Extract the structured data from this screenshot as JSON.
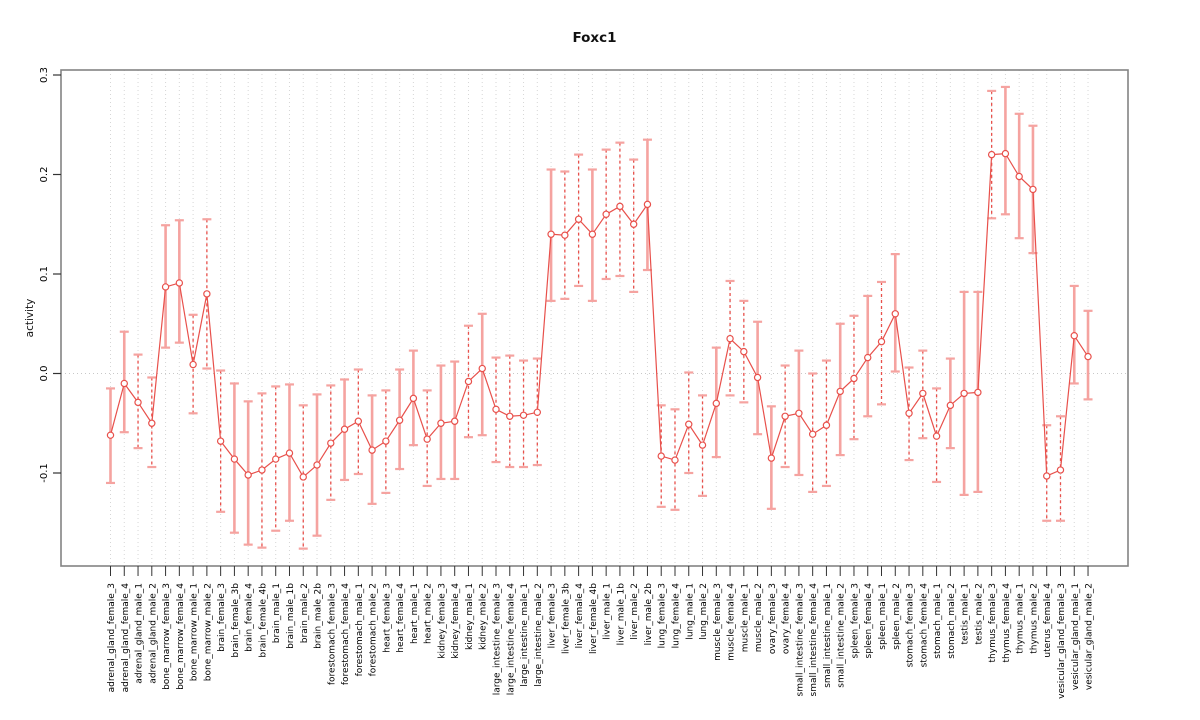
{
  "page": {
    "title": "Foxc1"
  },
  "chart_data": {
    "type": "line",
    "title": "Foxc1",
    "xlabel": "",
    "ylabel": "activity",
    "ylim": [
      -0.194,
      0.305
    ],
    "yticks": [
      0.3,
      0.2,
      0.1,
      0.0,
      -0.1
    ],
    "ytick_labels": [
      "0.3",
      "0.2",
      "0.1",
      "0.0",
      "-0.1"
    ],
    "grid": "vertical dotted gridline at every category; horizontal dotted line at y=0",
    "legend_position": "none",
    "marker": "open-circle",
    "error_bars": true,
    "categories": [
      "adrenal_gland_female_3",
      "adrenal_gland_female_4",
      "adrenal_gland_male_1",
      "adrenal_gland_male_2",
      "bone_marrow_female_3",
      "bone_marrow_female_4",
      "bone_marrow_male_1",
      "bone_marrow_male_2",
      "brain_female_3",
      "brain_female_3b",
      "brain_female_4",
      "brain_female_4b",
      "brain_male_1",
      "brain_male_1b",
      "brain_male_2",
      "brain_male_2b",
      "forestomach_female_3",
      "forestomach_female_4",
      "forestomach_male_1",
      "forestomach_male_2",
      "heart_female_3",
      "heart_female_4",
      "heart_male_1",
      "heart_male_2",
      "kidney_female_3",
      "kidney_female_4",
      "kidney_male_1",
      "kidney_male_2",
      "large_intestine_female_3",
      "large_intestine_female_4",
      "large_intestine_male_1",
      "large_intestine_male_2",
      "liver_female_3",
      "liver_female_3b",
      "liver_female_4",
      "liver_female_4b",
      "liver_male_1",
      "liver_male_1b",
      "liver_male_2",
      "liver_male_2b",
      "lung_female_3",
      "lung_female_4",
      "lung_male_1",
      "lung_male_2",
      "muscle_female_3",
      "muscle_female_4",
      "muscle_male_1",
      "muscle_male_2",
      "ovary_female_3",
      "ovary_female_4",
      "small_intestine_female_3",
      "small_intestine_female_4",
      "small_intestine_male_1",
      "small_intestine_male_2",
      "spleen_female_3",
      "spleen_female_4",
      "spleen_male_1",
      "spleen_male_2",
      "stomach_female_3",
      "stomach_female_4",
      "stomach_male_1",
      "stomach_male_2",
      "testis_male_1",
      "testis_male_2",
      "thymus_female_3",
      "thymus_female_4",
      "thymus_male_1",
      "thymus_male_2",
      "uterus_female_4",
      "vesicular_gland_female_3",
      "vesicular_gland_male_1",
      "vesicular_gland_male_2"
    ],
    "values": [
      -0.062,
      -0.01,
      -0.029,
      -0.05,
      0.087,
      0.091,
      0.009,
      0.08,
      -0.068,
      -0.086,
      -0.102,
      -0.097,
      -0.086,
      -0.08,
      -0.104,
      -0.092,
      -0.07,
      -0.056,
      -0.048,
      -0.077,
      -0.068,
      -0.047,
      -0.025,
      -0.066,
      -0.05,
      -0.048,
      -0.008,
      0.005,
      -0.036,
      -0.043,
      -0.042,
      -0.039,
      0.14,
      0.139,
      0.155,
      0.14,
      0.16,
      0.168,
      0.15,
      0.17,
      -0.083,
      -0.087,
      -0.051,
      -0.072,
      -0.03,
      0.035,
      0.022,
      -0.004,
      -0.085,
      -0.043,
      -0.04,
      -0.061,
      -0.052,
      -0.018,
      -0.005,
      0.016,
      0.032,
      0.06,
      -0.04,
      -0.02,
      -0.063,
      -0.032,
      -0.02,
      -0.019,
      0.22,
      0.221,
      0.198,
      0.185,
      -0.103,
      -0.097,
      0.038,
      0.017
    ],
    "err_lo": [
      -0.11,
      -0.059,
      -0.075,
      -0.094,
      0.026,
      0.031,
      -0.04,
      0.005,
      -0.139,
      -0.16,
      -0.172,
      -0.175,
      -0.158,
      -0.148,
      -0.176,
      -0.163,
      -0.127,
      -0.107,
      -0.101,
      -0.131,
      -0.12,
      -0.096,
      -0.072,
      -0.113,
      -0.106,
      -0.106,
      -0.064,
      -0.062,
      -0.089,
      -0.094,
      -0.094,
      -0.092,
      0.073,
      0.075,
      0.088,
      0.073,
      0.095,
      0.098,
      0.082,
      0.104,
      -0.134,
      -0.137,
      -0.1,
      -0.123,
      -0.084,
      -0.022,
      -0.029,
      -0.061,
      -0.136,
      -0.094,
      -0.102,
      -0.119,
      -0.113,
      -0.082,
      -0.066,
      -0.043,
      -0.031,
      0.002,
      -0.087,
      -0.065,
      -0.109,
      -0.075,
      -0.122,
      -0.119,
      0.156,
      0.16,
      0.136,
      0.121,
      -0.148,
      -0.148,
      -0.01,
      -0.026
    ],
    "err_hi": [
      -0.015,
      0.042,
      0.019,
      -0.004,
      0.149,
      0.154,
      0.059,
      0.155,
      0.003,
      -0.01,
      -0.028,
      -0.02,
      -0.013,
      -0.011,
      -0.032,
      -0.021,
      -0.012,
      -0.006,
      0.004,
      -0.022,
      -0.017,
      0.004,
      0.023,
      -0.017,
      0.008,
      0.012,
      0.048,
      0.06,
      0.016,
      0.018,
      0.013,
      0.015,
      0.205,
      0.203,
      0.22,
      0.205,
      0.225,
      0.232,
      0.215,
      0.235,
      -0.032,
      -0.036,
      0.001,
      -0.022,
      0.026,
      0.093,
      0.073,
      0.052,
      -0.033,
      0.008,
      0.023,
      0.0,
      0.013,
      0.05,
      0.058,
      0.078,
      0.092,
      0.12,
      0.006,
      0.023,
      -0.015,
      0.015,
      0.082,
      0.082,
      0.284,
      0.288,
      0.261,
      0.249,
      -0.052,
      -0.043,
      0.088,
      0.063
    ],
    "bar_style": [
      "s",
      "s",
      "d",
      "d",
      "s",
      "s",
      "d",
      "d",
      "d",
      "s",
      "s",
      "d",
      "d",
      "s",
      "d",
      "s",
      "d",
      "s",
      "d",
      "s",
      "d",
      "s",
      "s",
      "d",
      "s",
      "s",
      "d",
      "s",
      "d",
      "d",
      "d",
      "d",
      "s",
      "d",
      "d",
      "s",
      "d",
      "d",
      "d",
      "s",
      "d",
      "d",
      "d",
      "d",
      "s",
      "d",
      "d",
      "s",
      "s",
      "d",
      "s",
      "d",
      "d",
      "s",
      "d",
      "s",
      "d",
      "s",
      "d",
      "d",
      "d",
      "s",
      "s",
      "s",
      "d",
      "s",
      "s",
      "s",
      "d",
      "d",
      "s",
      "s"
    ],
    "colors": {
      "line": "#e8504b",
      "marker_stroke": "#e8504b",
      "marker_fill": "#ffffff",
      "bar_solid": "#f5a3a0",
      "bar_dashed": "#e8504b",
      "cap": "#f5a3a0",
      "grid": "#d6d6d6",
      "zero_line": "#c8c8c8",
      "border": "#838383",
      "tick": "#333333",
      "text": "#000000"
    }
  }
}
